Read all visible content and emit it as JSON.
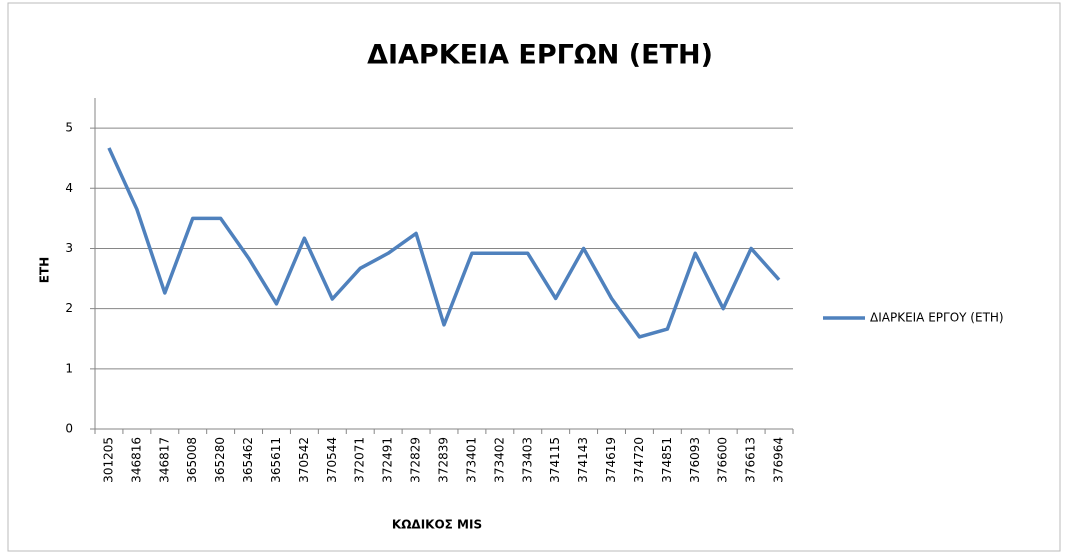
{
  "chart_data": {
    "type": "line",
    "title": "ΔΙΑΡΚΕΙΑ ΕΡΓΩΝ (ΕΤΗ)",
    "x_label": "ΚΩΔΙΚΟΣ MIS",
    "y_label": "ΕΤΗ",
    "categories": [
      "301205",
      "346816",
      "346817",
      "365008",
      "365280",
      "365462",
      "365611",
      "370542",
      "370544",
      "372071",
      "372491",
      "372829",
      "372839",
      "373401",
      "373402",
      "373403",
      "374115",
      "374143",
      "374619",
      "374720",
      "374851",
      "376093",
      "376600",
      "376613",
      "376964"
    ],
    "series": [
      {
        "name": "ΔΙΑΡΚΕΙΑ ΕΡΓΟΥ (ΕΤΗ)",
        "color": "#4f81bd",
        "values": [
          4.67,
          3.65,
          2.26,
          3.5,
          3.5,
          2.84,
          2.08,
          3.17,
          2.16,
          2.67,
          2.92,
          3.25,
          1.73,
          2.92,
          2.92,
          2.92,
          2.17,
          3.0,
          2.17,
          1.53,
          1.66,
          2.92,
          2.0,
          3.0,
          2.48
        ]
      }
    ],
    "ylim": [
      0,
      5.5
    ],
    "yticks": [
      0,
      1,
      2,
      3,
      4,
      5
    ],
    "grid": true,
    "legend": "right"
  }
}
